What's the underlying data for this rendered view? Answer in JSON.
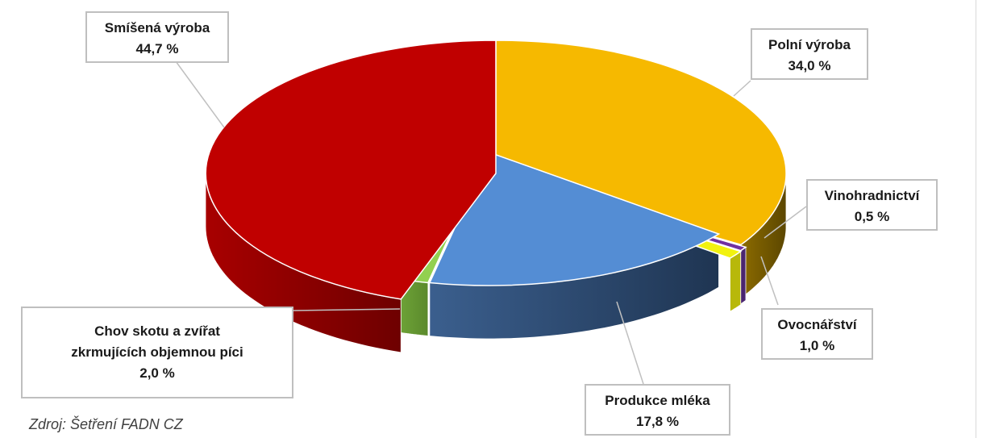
{
  "chart_data": {
    "type": "pie",
    "style": "3d-exploded",
    "slices": [
      {
        "name": "Polní výroba",
        "value": 34.0,
        "label": "34,0 %",
        "color": "#F6B900"
      },
      {
        "name": "Vinohradnictví",
        "value": 0.5,
        "label": "0,5 %",
        "color": "#7030A0"
      },
      {
        "name": "Ovocnářství",
        "value": 1.0,
        "label": "1,0 %",
        "color": "#F2F20F"
      },
      {
        "name": "Produkce mléka",
        "value": 17.8,
        "label": "17,8 %",
        "color": "#548DD4"
      },
      {
        "name": "Chov skotu a zvířat zkrmujících objemnou píci",
        "value": 2.0,
        "label": "2,0 %",
        "color": "#92D050"
      },
      {
        "name": "Smíšená výroba",
        "value": 44.7,
        "label": "44,7 %",
        "color": "#C00000"
      }
    ]
  },
  "labels": {
    "polni": {
      "line1": "Polní výroba",
      "line2": "34,0 %"
    },
    "vino": {
      "line1": "Vinohradnictví",
      "line2": "0,5 %"
    },
    "ovoc": {
      "line1": "Ovocnářství",
      "line2": "1,0 %"
    },
    "mleko": {
      "line1": "Produkce mléka",
      "line2": "17,8 %"
    },
    "skot": {
      "line1": "Chov skotu a zvířat",
      "line2": "zkrmujících objemnou píci",
      "line3": "2,0 %"
    },
    "smisena": {
      "line1": "Smíšená výroba",
      "line2": "44,7 %"
    }
  },
  "source": "Zdroj: Šetření FADN CZ"
}
